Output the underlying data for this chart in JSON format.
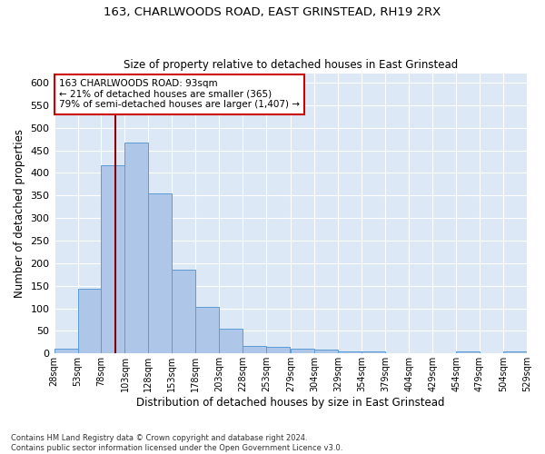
{
  "title1": "163, CHARLWOODS ROAD, EAST GRINSTEAD, RH19 2RX",
  "title2": "Size of property relative to detached houses in East Grinstead",
  "xlabel": "Distribution of detached houses by size in East Grinstead",
  "ylabel": "Number of detached properties",
  "bar_color": "#aec6e8",
  "bar_edge_color": "#5b9bd5",
  "bg_color": "#dce8f5",
  "grid_color": "white",
  "vline_x": 93,
  "vline_color": "#8b0000",
  "annotation_text": "163 CHARLWOODS ROAD: 93sqm\n← 21% of detached houses are smaller (365)\n79% of semi-detached houses are larger (1,407) →",
  "annotation_box_color": "#cc0000",
  "bin_edges": [
    28,
    53,
    78,
    103,
    128,
    153,
    178,
    203,
    228,
    253,
    279,
    304,
    329,
    354,
    379,
    404,
    429,
    454,
    479,
    504,
    529
  ],
  "bar_heights": [
    10,
    143,
    416,
    468,
    354,
    185,
    103,
    55,
    16,
    14,
    11,
    8,
    5,
    5,
    0,
    0,
    0,
    5,
    0,
    5
  ],
  "ylim": [
    0,
    620
  ],
  "yticks": [
    0,
    50,
    100,
    150,
    200,
    250,
    300,
    350,
    400,
    450,
    500,
    550,
    600
  ],
  "footer": "Contains HM Land Registry data © Crown copyright and database right 2024.\nContains public sector information licensed under the Open Government Licence v3.0.",
  "tick_labels": [
    "28sqm",
    "53sqm",
    "78sqm",
    "103sqm",
    "128sqm",
    "153sqm",
    "178sqm",
    "203sqm",
    "228sqm",
    "253sqm",
    "279sqm",
    "304sqm",
    "329sqm",
    "354sqm",
    "379sqm",
    "404sqm",
    "429sqm",
    "454sqm",
    "479sqm",
    "504sqm",
    "529sqm"
  ]
}
